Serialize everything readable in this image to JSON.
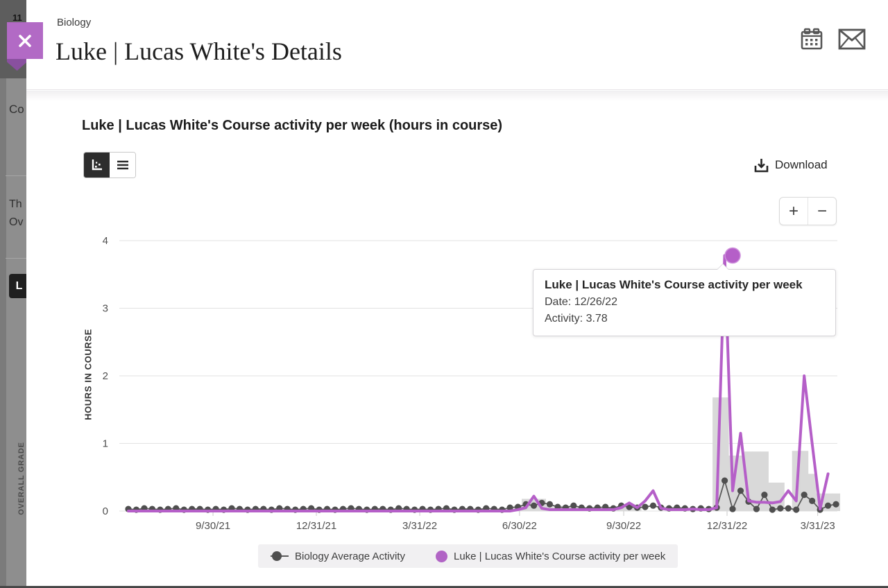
{
  "backdrop": {
    "top_fragment": "11",
    "course_fragment": "Co",
    "line1_fragment": "Th",
    "line2_fragment": "Ov",
    "button_fragment": "L",
    "vertical_label": "OVERALL GRADE"
  },
  "header": {
    "course": "Biology",
    "title": "Luke | Lucas White's Details"
  },
  "chart_section": {
    "title": "Luke | Lucas White's Course activity per week (hours in course)",
    "download_label": "Download",
    "zoom_in_label": "+",
    "zoom_out_label": "−"
  },
  "tooltip": {
    "title": "Luke | Lucas White's Course activity per week",
    "date_line": "Date: 12/26/22",
    "activity_line": "Activity: 3.78"
  },
  "legend": [
    {
      "label": "Biology Average Activity",
      "color": "#4f4f4f"
    },
    {
      "label": "Luke | Lucas White's Course activity per week",
      "color": "#b164c5"
    }
  ],
  "colors": {
    "accent_purple": "#b55fc8",
    "average_gray": "#4f4f4f",
    "bar_gray": "#d9d9d9",
    "grid": "#e2e2e2",
    "tick_text": "#4f4f4f"
  },
  "chart_data": {
    "type": "line",
    "title": "Luke | Lucas White's Course activity per week (hours in course)",
    "ylabel": "HOURS IN COURSE",
    "ylim": [
      0,
      4
    ],
    "yticks": [
      0,
      1,
      2,
      3,
      4
    ],
    "grid": true,
    "legend_position": "bottom",
    "x_tick_labels": [
      "9/30/21",
      "12/31/21",
      "3/31/22",
      "6/30/22",
      "9/30/22",
      "12/31/22",
      "3/31/23"
    ],
    "x_tick_week_positions": [
      10.65,
      23.65,
      36.65,
      49.2,
      62.3,
      75.3,
      86.7
    ],
    "weeks": 90,
    "series": [
      {
        "name": "Biology Average Activity",
        "style": "line+dots",
        "color": "#4f4f4f",
        "values": [
          0.03,
          0.02,
          0.04,
          0.03,
          0.02,
          0.03,
          0.04,
          0.02,
          0.03,
          0.03,
          0.02,
          0.03,
          0.02,
          0.04,
          0.03,
          0.02,
          0.03,
          0.03,
          0.02,
          0.04,
          0.03,
          0.02,
          0.03,
          0.04,
          0.02,
          0.03,
          0.02,
          0.03,
          0.04,
          0.03,
          0.02,
          0.03,
          0.03,
          0.02,
          0.04,
          0.03,
          0.02,
          0.03,
          0.02,
          0.03,
          0.04,
          0.02,
          0.03,
          0.03,
          0.02,
          0.04,
          0.03,
          0.02,
          0.05,
          0.06,
          0.1,
          0.08,
          0.12,
          0.1,
          0.06,
          0.05,
          0.08,
          0.05,
          0.04,
          0.05,
          0.06,
          0.04,
          0.08,
          0.06,
          0.05,
          0.06,
          0.08,
          0.05,
          0.04,
          0.05,
          0.04,
          0.03,
          0.04,
          0.03,
          0.05,
          0.45,
          0.03,
          0.3,
          0.14,
          0.03,
          0.24,
          0.02,
          0.04,
          0.04,
          0.02,
          0.24,
          0.15,
          0.02,
          0.08,
          0.1
        ]
      },
      {
        "name": "Luke | Lucas White's Course activity per week",
        "style": "line",
        "color": "#b55fc8",
        "values": [
          0,
          0,
          0,
          0,
          0,
          0,
          0,
          0,
          0,
          0,
          0,
          0,
          0,
          0,
          0,
          0,
          0,
          0,
          0,
          0,
          0,
          0,
          0,
          0,
          0,
          0,
          0,
          0,
          0,
          0,
          0,
          0,
          0,
          0,
          0,
          0,
          0,
          0,
          0,
          0,
          0,
          0,
          0,
          0,
          0,
          0,
          0,
          0,
          0,
          0.02,
          0.05,
          0.22,
          0.04,
          0.02,
          0.02,
          0.02,
          0.02,
          0.02,
          0.02,
          0.02,
          0.02,
          0.02,
          0.05,
          0.12,
          0.05,
          0.15,
          0.3,
          0.04,
          0.02,
          0.02,
          0.02,
          0.03,
          0.02,
          0.02,
          0.05,
          3.78,
          0.3,
          1.15,
          0.15,
          0.13,
          0.13,
          0.12,
          0.14,
          0.3,
          0.15,
          2.0,
          1.0,
          0.03,
          0.55
        ]
      }
    ],
    "bars": {
      "color": "#d9d9d9",
      "points": [
        {
          "week": 49,
          "value": 0.08
        },
        {
          "week": 50,
          "value": 0.18
        },
        {
          "week": 51,
          "value": 0.18
        },
        {
          "week": 52,
          "value": 0.18
        },
        {
          "week": 53,
          "value": 0.08
        },
        {
          "week": 55,
          "value": 0.08
        },
        {
          "week": 56,
          "value": 0.06
        },
        {
          "week": 62,
          "value": 0.08
        },
        {
          "week": 63,
          "value": 0.08
        },
        {
          "week": 64,
          "value": 0.06
        },
        {
          "week": 74,
          "value": 1.68
        },
        {
          "week": 75,
          "value": 1.68
        },
        {
          "week": 76,
          "value": 0.82
        },
        {
          "week": 77,
          "value": 0.82
        },
        {
          "week": 78,
          "value": 0.88
        },
        {
          "week": 79,
          "value": 0.88
        },
        {
          "week": 80,
          "value": 0.88
        },
        {
          "week": 81,
          "value": 0.42
        },
        {
          "week": 82,
          "value": 0.42
        },
        {
          "week": 84,
          "value": 0.89
        },
        {
          "week": 85,
          "value": 0.89
        },
        {
          "week": 86,
          "value": 0.55
        },
        {
          "week": 87,
          "value": 0.26
        },
        {
          "week": 88,
          "value": 0.26
        },
        {
          "week": 89,
          "value": 0.26
        }
      ]
    },
    "highlight": {
      "week": 76,
      "value": 3.78,
      "date": "12/26/22"
    }
  }
}
